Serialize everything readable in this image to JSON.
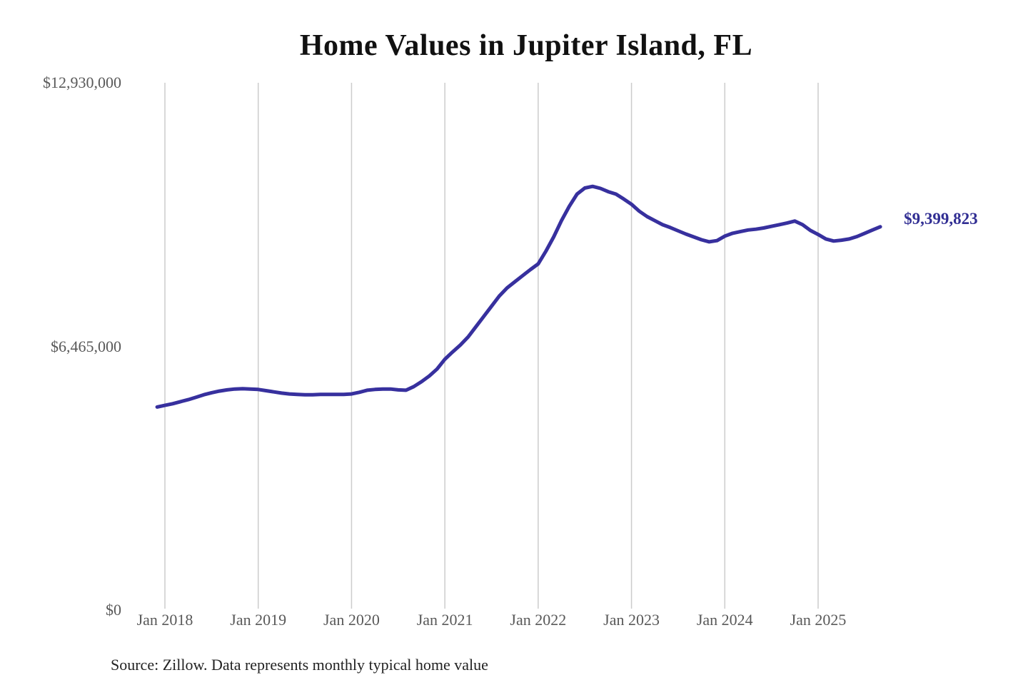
{
  "chart": {
    "title": "Home Values in Jupiter Island, FL",
    "source": "Source: Zillow. Data represents monthly typical home value",
    "end_label": "$9,399,823"
  },
  "colors": {
    "line": "#37309e",
    "end_label_text": "#312e93",
    "gridline": "#cccccc",
    "axis_text": "#595959",
    "title_text": "#111111",
    "source_text": "#222222",
    "background": "#ffffff"
  },
  "chart_data": {
    "type": "line",
    "title": "Home Values in Jupiter Island, FL",
    "xlabel": "",
    "ylabel": "",
    "ylim": [
      0,
      12930000
    ],
    "grid": "vertical-only",
    "legend": "none",
    "x_tick_labels": [
      "Jan 2018",
      "Jan 2019",
      "Jan 2020",
      "Jan 2021",
      "Jan 2022",
      "Jan 2023",
      "Jan 2024",
      "Jan 2025"
    ],
    "y_ticks": [
      {
        "label": "$0",
        "value": 0
      },
      {
        "label": "$6,465,000",
        "value": 6465000
      },
      {
        "label": "$12,930,000",
        "value": 12930000
      }
    ],
    "annotation": {
      "text": "$9,399,823",
      "value": 9399823
    },
    "x": [
      "2017-12",
      "2018-01",
      "2018-02",
      "2018-03",
      "2018-04",
      "2018-05",
      "2018-06",
      "2018-07",
      "2018-08",
      "2018-09",
      "2018-10",
      "2018-11",
      "2018-12",
      "2019-01",
      "2019-02",
      "2019-03",
      "2019-04",
      "2019-05",
      "2019-06",
      "2019-07",
      "2019-08",
      "2019-09",
      "2019-10",
      "2019-11",
      "2019-12",
      "2020-01",
      "2020-02",
      "2020-03",
      "2020-04",
      "2020-05",
      "2020-06",
      "2020-07",
      "2020-08",
      "2020-09",
      "2020-10",
      "2020-11",
      "2020-12",
      "2021-01",
      "2021-02",
      "2021-03",
      "2021-04",
      "2021-05",
      "2021-06",
      "2021-07",
      "2021-08",
      "2021-09",
      "2021-10",
      "2021-11",
      "2021-12",
      "2022-01",
      "2022-02",
      "2022-03",
      "2022-04",
      "2022-05",
      "2022-06",
      "2022-07",
      "2022-08",
      "2022-09",
      "2022-10",
      "2022-11",
      "2022-12",
      "2023-01",
      "2023-02",
      "2023-03",
      "2023-04",
      "2023-05",
      "2023-06",
      "2023-07",
      "2023-08",
      "2023-09",
      "2023-10",
      "2023-11",
      "2023-12",
      "2024-01",
      "2024-02",
      "2024-03",
      "2024-04",
      "2024-05",
      "2024-06",
      "2024-07",
      "2024-08",
      "2024-09",
      "2024-10",
      "2024-11",
      "2024-12",
      "2025-01",
      "2025-02",
      "2025-03",
      "2025-04",
      "2025-05",
      "2025-06",
      "2025-07",
      "2025-08",
      "2025-09"
    ],
    "series": [
      {
        "name": "Monthly typical home value",
        "values": [
          4980000,
          5020000,
          5060000,
          5110000,
          5160000,
          5220000,
          5280000,
          5330000,
          5370000,
          5400000,
          5420000,
          5430000,
          5420000,
          5410000,
          5380000,
          5350000,
          5320000,
          5300000,
          5290000,
          5280000,
          5280000,
          5290000,
          5290000,
          5290000,
          5290000,
          5300000,
          5340000,
          5390000,
          5410000,
          5420000,
          5420000,
          5400000,
          5390000,
          5480000,
          5600000,
          5740000,
          5910000,
          6150000,
          6330000,
          6500000,
          6700000,
          6950000,
          7200000,
          7450000,
          7700000,
          7900000,
          8050000,
          8200000,
          8350000,
          8490000,
          8800000,
          9150000,
          9550000,
          9900000,
          10200000,
          10350000,
          10390000,
          10340000,
          10260000,
          10200000,
          10080000,
          9950000,
          9780000,
          9650000,
          9550000,
          9450000,
          9380000,
          9300000,
          9220000,
          9150000,
          9080000,
          9030000,
          9060000,
          9170000,
          9240000,
          9280000,
          9320000,
          9340000,
          9370000,
          9410000,
          9450000,
          9490000,
          9540000,
          9450000,
          9310000,
          9210000,
          9100000,
          9050000,
          9070000,
          9100000,
          9160000,
          9240000,
          9320000,
          9399823
        ]
      }
    ]
  }
}
